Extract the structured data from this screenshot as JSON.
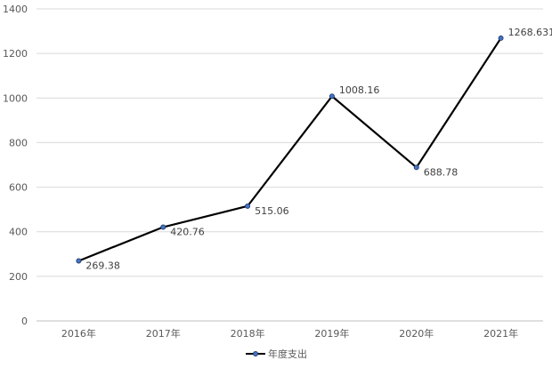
{
  "chart_data": {
    "type": "line",
    "categories": [
      "2016年",
      "2017年",
      "2018年",
      "2019年",
      "2020年",
      "2021年"
    ],
    "series": [
      {
        "name": "年度支出",
        "values": [
          269.38,
          420.76,
          515.06,
          1008.16,
          688.78,
          1268.631
        ],
        "labels": [
          "269.38",
          "420.76",
          "515.06",
          "1008.16",
          "688.78",
          "1268.631"
        ]
      }
    ],
    "y_ticks": [
      "0",
      "200",
      "400",
      "600",
      "800",
      "1000",
      "1200",
      "1400"
    ],
    "ylim": [
      0,
      1400
    ],
    "grid": true,
    "legend": "bottom",
    "colors": {
      "line": "#000000",
      "marker_fill": "#4472c4",
      "grid": "#d9d9d9"
    }
  }
}
